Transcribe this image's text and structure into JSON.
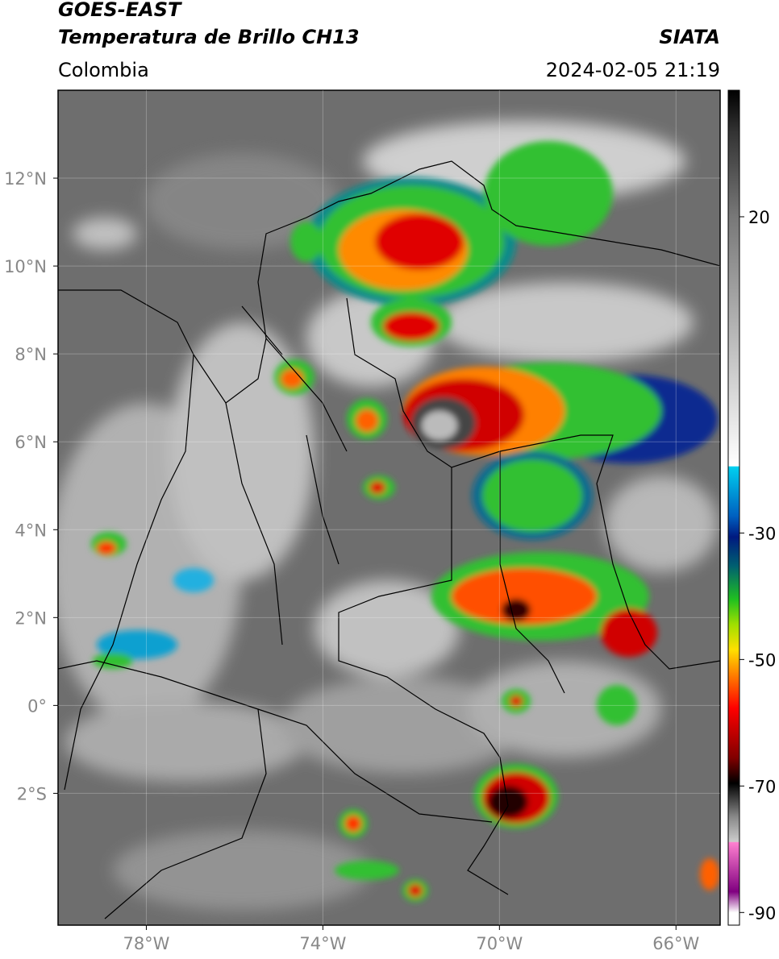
{
  "header": {
    "title": "GOES-EAST",
    "subtitle": "Temperatura de Brillo CH13",
    "region": "Colombia",
    "source": "SIATA",
    "datetime": "2024-02-05 21:19"
  },
  "map": {
    "xlim": [
      -80,
      -65
    ],
    "ylim": [
      -5,
      14
    ],
    "xticks": [
      {
        "value": -78,
        "label": "78°W"
      },
      {
        "value": -74,
        "label": "74°W"
      },
      {
        "value": -70,
        "label": "70°W"
      },
      {
        "value": -66,
        "label": "66°W"
      }
    ],
    "yticks": [
      {
        "value": 12,
        "label": "12°N"
      },
      {
        "value": 10,
        "label": "10°N"
      },
      {
        "value": 8,
        "label": "8°N"
      },
      {
        "value": 6,
        "label": "6°N"
      },
      {
        "value": 4,
        "label": "4°N"
      },
      {
        "value": 2,
        "label": "2°N"
      },
      {
        "value": 0,
        "label": "0°"
      },
      {
        "value": -2,
        "label": "2°S"
      }
    ]
  },
  "colorbar": {
    "lim": [
      -92,
      40
    ],
    "ticks": [
      20,
      -30,
      -50,
      -70,
      -90
    ]
  }
}
